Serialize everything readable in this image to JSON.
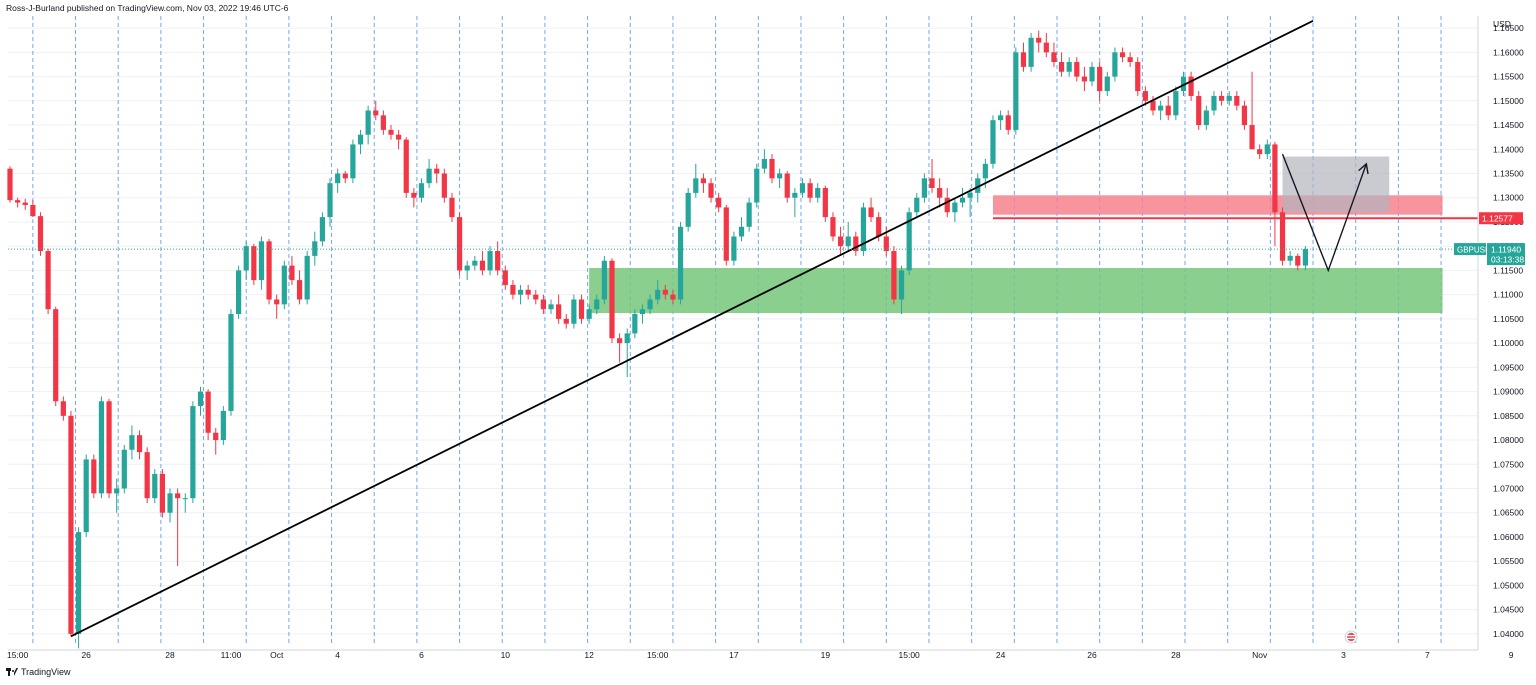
{
  "header": {
    "publisher": "Ross-J-Burland published on TradingView.com, Nov 03, 2022 19:46 UTC-6"
  },
  "footer": {
    "brand": "TradingView"
  },
  "colors": {
    "up": "#26a69a",
    "down": "#f23645",
    "support_zone": "#77c77b",
    "resistance_zone": "#f7818c",
    "projection_box": "#b2b5be",
    "trendline": "#000000"
  },
  "chart_data": {
    "type": "candlestick",
    "symbol": "GBPUSD",
    "currency": "USD",
    "last_price": "1.11940",
    "countdown": "03:13:38",
    "level_label": "1.12577",
    "ylim": [
      1.0375,
      1.1675
    ],
    "y_ticks": [
      "1.16500",
      "1.16000",
      "1.15500",
      "1.15000",
      "1.14500",
      "1.14000",
      "1.13500",
      "1.13000",
      "1.12500",
      "1.12000",
      "1.11500",
      "1.11000",
      "1.10500",
      "1.10000",
      "1.09500",
      "1.09000",
      "1.08500",
      "1.08000",
      "1.07500",
      "1.07000",
      "1.06500",
      "1.06000",
      "1.05500",
      "1.05000",
      "1.04500",
      "1.04000"
    ],
    "x_ticks": [
      "15:00",
      "26",
      "28",
      "11:00",
      "Oct",
      "4",
      "6",
      "10",
      "12",
      "15:00",
      "17",
      "19",
      "15:00",
      "24",
      "26",
      "28",
      "Nov",
      "3",
      "7",
      "9"
    ],
    "x_tick_index": [
      1,
      10,
      21,
      29,
      35,
      43,
      54,
      65,
      76,
      85,
      95,
      107,
      118,
      130,
      142,
      153,
      164,
      175,
      186,
      197
    ],
    "candles_ohlc": [
      [
        1.136,
        1.1365,
        1.129,
        1.1295
      ],
      [
        1.1295,
        1.13,
        1.128,
        1.129
      ],
      [
        1.129,
        1.1298,
        1.1275,
        1.1285
      ],
      [
        1.1285,
        1.1295,
        1.126,
        1.1262
      ],
      [
        1.1262,
        1.127,
        1.118,
        1.119
      ],
      [
        1.119,
        1.1195,
        1.106,
        1.107
      ],
      [
        1.107,
        1.1075,
        1.087,
        1.088
      ],
      [
        1.088,
        1.089,
        1.084,
        1.085
      ],
      [
        1.085,
        1.086,
        1.0395,
        1.04
      ],
      [
        1.04,
        1.062,
        1.037,
        1.061
      ],
      [
        1.061,
        1.077,
        1.06,
        1.076
      ],
      [
        1.076,
        1.077,
        1.068,
        1.069
      ],
      [
        1.069,
        1.089,
        1.068,
        1.088
      ],
      [
        1.088,
        1.0885,
        1.068,
        1.069
      ],
      [
        1.069,
        1.072,
        1.065,
        1.07
      ],
      [
        1.07,
        1.079,
        1.069,
        1.078
      ],
      [
        1.078,
        1.083,
        1.076,
        1.081
      ],
      [
        1.081,
        1.082,
        1.076,
        1.0775
      ],
      [
        1.0775,
        1.0785,
        1.067,
        1.068
      ],
      [
        1.068,
        1.074,
        1.067,
        1.073
      ],
      [
        1.073,
        1.074,
        1.064,
        1.065
      ],
      [
        1.065,
        1.07,
        1.063,
        1.069
      ],
      [
        1.069,
        1.07,
        1.054,
        1.068
      ],
      [
        1.068,
        1.069,
        1.065,
        1.068
      ],
      [
        1.068,
        1.088,
        1.067,
        1.087
      ],
      [
        1.087,
        1.091,
        1.085,
        1.09
      ],
      [
        1.09,
        1.0905,
        1.08,
        1.0815
      ],
      [
        1.0815,
        1.0825,
        1.077,
        1.08
      ],
      [
        1.08,
        1.087,
        1.079,
        1.086
      ],
      [
        1.086,
        1.107,
        1.085,
        1.106
      ],
      [
        1.106,
        1.116,
        1.105,
        1.115
      ],
      [
        1.115,
        1.121,
        1.113,
        1.12
      ],
      [
        1.12,
        1.1205,
        1.112,
        1.113
      ],
      [
        1.113,
        1.122,
        1.111,
        1.121
      ],
      [
        1.121,
        1.1215,
        1.108,
        1.109
      ],
      [
        1.109,
        1.11,
        1.105,
        1.108
      ],
      [
        1.108,
        1.117,
        1.107,
        1.116
      ],
      [
        1.116,
        1.118,
        1.112,
        1.113
      ],
      [
        1.113,
        1.115,
        1.108,
        1.109
      ],
      [
        1.109,
        1.119,
        1.108,
        1.118
      ],
      [
        1.118,
        1.123,
        1.116,
        1.121
      ],
      [
        1.121,
        1.127,
        1.12,
        1.126
      ],
      [
        1.126,
        1.134,
        1.124,
        1.133
      ],
      [
        1.133,
        1.136,
        1.131,
        1.135
      ],
      [
        1.135,
        1.1355,
        1.133,
        1.134
      ],
      [
        1.134,
        1.142,
        1.133,
        1.141
      ],
      [
        1.141,
        1.144,
        1.139,
        1.143
      ],
      [
        1.143,
        1.149,
        1.141,
        1.148
      ],
      [
        1.148,
        1.15,
        1.146,
        1.147
      ],
      [
        1.147,
        1.148,
        1.143,
        1.144
      ],
      [
        1.144,
        1.145,
        1.142,
        1.143
      ],
      [
        1.143,
        1.144,
        1.14,
        1.142
      ],
      [
        1.142,
        1.1425,
        1.13,
        1.131
      ],
      [
        1.131,
        1.132,
        1.128,
        1.13
      ],
      [
        1.13,
        1.134,
        1.129,
        1.133
      ],
      [
        1.133,
        1.138,
        1.132,
        1.136
      ],
      [
        1.136,
        1.137,
        1.133,
        1.135
      ],
      [
        1.135,
        1.136,
        1.129,
        1.13
      ],
      [
        1.13,
        1.131,
        1.125,
        1.126
      ],
      [
        1.126,
        1.127,
        1.114,
        1.115
      ],
      [
        1.115,
        1.117,
        1.113,
        1.116
      ],
      [
        1.116,
        1.118,
        1.115,
        1.117
      ],
      [
        1.117,
        1.119,
        1.114,
        1.115
      ],
      [
        1.115,
        1.12,
        1.114,
        1.119
      ],
      [
        1.119,
        1.121,
        1.114,
        1.115
      ],
      [
        1.115,
        1.116,
        1.111,
        1.112
      ],
      [
        1.112,
        1.113,
        1.109,
        1.11
      ],
      [
        1.11,
        1.112,
        1.108,
        1.111
      ],
      [
        1.111,
        1.112,
        1.109,
        1.11
      ],
      [
        1.11,
        1.111,
        1.108,
        1.109
      ],
      [
        1.109,
        1.11,
        1.106,
        1.107
      ],
      [
        1.107,
        1.109,
        1.106,
        1.108
      ],
      [
        1.108,
        1.11,
        1.104,
        1.105
      ],
      [
        1.105,
        1.106,
        1.103,
        1.104
      ],
      [
        1.104,
        1.11,
        1.103,
        1.109
      ],
      [
        1.109,
        1.11,
        1.104,
        1.105
      ],
      [
        1.105,
        1.108,
        1.104,
        1.107
      ],
      [
        1.107,
        1.11,
        1.106,
        1.109
      ],
      [
        1.109,
        1.118,
        1.108,
        1.117
      ],
      [
        1.117,
        1.1175,
        1.1,
        1.101
      ],
      [
        1.101,
        1.102,
        1.096,
        1.1
      ],
      [
        1.1,
        1.103,
        1.093,
        1.102
      ],
      [
        1.102,
        1.107,
        1.101,
        1.106
      ],
      [
        1.106,
        1.108,
        1.104,
        1.107
      ],
      [
        1.107,
        1.11,
        1.106,
        1.109
      ],
      [
        1.109,
        1.113,
        1.108,
        1.111
      ],
      [
        1.111,
        1.112,
        1.109,
        1.11
      ],
      [
        1.11,
        1.111,
        1.108,
        1.109
      ],
      [
        1.109,
        1.125,
        1.108,
        1.124
      ],
      [
        1.124,
        1.132,
        1.123,
        1.131
      ],
      [
        1.131,
        1.137,
        1.13,
        1.134
      ],
      [
        1.134,
        1.135,
        1.131,
        1.133
      ],
      [
        1.133,
        1.134,
        1.129,
        1.13
      ],
      [
        1.13,
        1.131,
        1.127,
        1.128
      ],
      [
        1.128,
        1.1285,
        1.116,
        1.117
      ],
      [
        1.117,
        1.123,
        1.116,
        1.122
      ],
      [
        1.122,
        1.126,
        1.121,
        1.124
      ],
      [
        1.124,
        1.13,
        1.123,
        1.129
      ],
      [
        1.129,
        1.137,
        1.128,
        1.136
      ],
      [
        1.136,
        1.14,
        1.135,
        1.138
      ],
      [
        1.138,
        1.139,
        1.133,
        1.134
      ],
      [
        1.134,
        1.136,
        1.132,
        1.135
      ],
      [
        1.135,
        1.1355,
        1.129,
        1.13
      ],
      [
        1.13,
        1.132,
        1.126,
        1.131
      ],
      [
        1.131,
        1.134,
        1.13,
        1.133
      ],
      [
        1.133,
        1.134,
        1.129,
        1.13
      ],
      [
        1.13,
        1.133,
        1.129,
        1.132
      ],
      [
        1.132,
        1.1325,
        1.125,
        1.126
      ],
      [
        1.126,
        1.127,
        1.121,
        1.122
      ],
      [
        1.122,
        1.124,
        1.118,
        1.12
      ],
      [
        1.12,
        1.125,
        1.119,
        1.122
      ],
      [
        1.122,
        1.123,
        1.118,
        1.119
      ],
      [
        1.119,
        1.129,
        1.118,
        1.128
      ],
      [
        1.128,
        1.13,
        1.125,
        1.126
      ],
      [
        1.126,
        1.127,
        1.121,
        1.122
      ],
      [
        1.122,
        1.124,
        1.118,
        1.119
      ],
      [
        1.119,
        1.12,
        1.108,
        1.109
      ],
      [
        1.109,
        1.116,
        1.106,
        1.115
      ],
      [
        1.115,
        1.128,
        1.114,
        1.127
      ],
      [
        1.127,
        1.131,
        1.126,
        1.13
      ],
      [
        1.13,
        1.135,
        1.129,
        1.134
      ],
      [
        1.134,
        1.138,
        1.131,
        1.132
      ],
      [
        1.132,
        1.134,
        1.128,
        1.13
      ],
      [
        1.13,
        1.132,
        1.126,
        1.127
      ],
      [
        1.127,
        1.13,
        1.125,
        1.129
      ],
      [
        1.129,
        1.132,
        1.128,
        1.13
      ],
      [
        1.13,
        1.132,
        1.126,
        1.131
      ],
      [
        1.131,
        1.135,
        1.129,
        1.134
      ],
      [
        1.134,
        1.138,
        1.132,
        1.137
      ],
      [
        1.137,
        1.147,
        1.136,
        1.146
      ],
      [
        1.146,
        1.148,
        1.144,
        1.147
      ],
      [
        1.147,
        1.148,
        1.143,
        1.144
      ],
      [
        1.144,
        1.161,
        1.143,
        1.16
      ],
      [
        1.16,
        1.162,
        1.156,
        1.157
      ],
      [
        1.157,
        1.164,
        1.156,
        1.163
      ],
      [
        1.163,
        1.1645,
        1.16,
        1.162
      ],
      [
        1.162,
        1.164,
        1.159,
        1.16
      ],
      [
        1.16,
        1.162,
        1.157,
        1.158
      ],
      [
        1.158,
        1.16,
        1.155,
        1.156
      ],
      [
        1.156,
        1.159,
        1.155,
        1.158
      ],
      [
        1.158,
        1.159,
        1.154,
        1.155
      ],
      [
        1.155,
        1.157,
        1.152,
        1.154
      ],
      [
        1.154,
        1.158,
        1.153,
        1.157
      ],
      [
        1.157,
        1.158,
        1.15,
        1.152
      ],
      [
        1.152,
        1.156,
        1.151,
        1.155
      ],
      [
        1.155,
        1.161,
        1.154,
        1.16
      ],
      [
        1.16,
        1.161,
        1.158,
        1.159
      ],
      [
        1.159,
        1.16,
        1.157,
        1.158
      ],
      [
        1.158,
        1.159,
        1.151,
        1.152
      ],
      [
        1.152,
        1.153,
        1.149,
        1.15
      ],
      [
        1.15,
        1.151,
        1.147,
        1.148
      ],
      [
        1.148,
        1.15,
        1.146,
        1.149
      ],
      [
        1.149,
        1.151,
        1.146,
        1.147
      ],
      [
        1.147,
        1.153,
        1.146,
        1.152
      ],
      [
        1.152,
        1.156,
        1.151,
        1.155
      ],
      [
        1.155,
        1.156,
        1.15,
        1.151
      ],
      [
        1.151,
        1.152,
        1.144,
        1.145
      ],
      [
        1.145,
        1.149,
        1.144,
        1.148
      ],
      [
        1.148,
        1.152,
        1.147,
        1.151
      ],
      [
        1.151,
        1.152,
        1.149,
        1.15
      ],
      [
        1.15,
        1.152,
        1.149,
        1.151
      ],
      [
        1.151,
        1.152,
        1.148,
        1.149
      ],
      [
        1.149,
        1.15,
        1.144,
        1.145
      ],
      [
        1.145,
        1.156,
        1.142,
        1.14
      ],
      [
        1.14,
        1.141,
        1.138,
        1.139
      ],
      [
        1.139,
        1.142,
        1.138,
        1.141
      ],
      [
        1.141,
        1.1415,
        1.12,
        1.127
      ],
      [
        1.127,
        1.128,
        1.116,
        1.117
      ],
      [
        1.117,
        1.119,
        1.116,
        1.118
      ],
      [
        1.118,
        1.1185,
        1.115,
        1.116
      ],
      [
        1.116,
        1.12,
        1.115,
        1.1194
      ]
    ],
    "zones": [
      {
        "name": "support",
        "from_index": 76,
        "to_index": 188,
        "low": 1.1062,
        "high": 1.1155
      },
      {
        "name": "resistance",
        "from_index": 129,
        "to_index": 188,
        "low": 1.1265,
        "high": 1.1305
      },
      {
        "name": "projection",
        "from_index": 167,
        "to_index": 181,
        "low": 1.127,
        "high": 1.1385
      }
    ],
    "trendline": {
      "from": [
        8,
        1.0395
      ],
      "to": [
        171,
        1.1665
      ]
    },
    "resistance_line": 1.12577,
    "projection_path": [
      [
        167,
        1.139
      ],
      [
        173,
        1.115
      ],
      [
        178,
        1.137
      ]
    ]
  }
}
